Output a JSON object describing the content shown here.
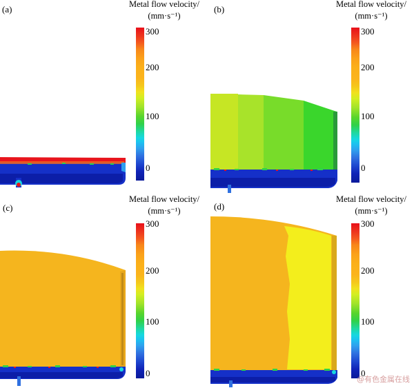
{
  "panels": [
    {
      "label": "(a)",
      "colorbar_title_line1": "Metal flow velocity/",
      "colorbar_title_line2": "(mm·s⁻¹)",
      "ticks": [
        "300",
        "200",
        "100",
        "0"
      ]
    },
    {
      "label": "(b)",
      "colorbar_title_line1": "Metal flow velocity/",
      "colorbar_title_line2": "(mm·s⁻¹)",
      "ticks": [
        "300",
        "200",
        "100",
        "0"
      ]
    },
    {
      "label": "(c)",
      "colorbar_title_line1": "Metal flow velocity/",
      "colorbar_title_line2": "(mm·s⁻¹)",
      "ticks": [
        "300",
        "200",
        "100",
        "0"
      ]
    },
    {
      "label": "(d)",
      "colorbar_title_line1": "Metal flow velocity/",
      "colorbar_title_line2": "(mm·s⁻¹)",
      "ticks": [
        "300",
        "200",
        "100",
        "0"
      ]
    }
  ],
  "watermark": "@有色金属在线",
  "colors": {
    "blue": "#1530c8",
    "dark_blue": "#0c1ea8",
    "orange": "#f5b51e",
    "yellow": "#f3ee1c",
    "green": "#48d82a",
    "red": "#e8141c"
  }
}
